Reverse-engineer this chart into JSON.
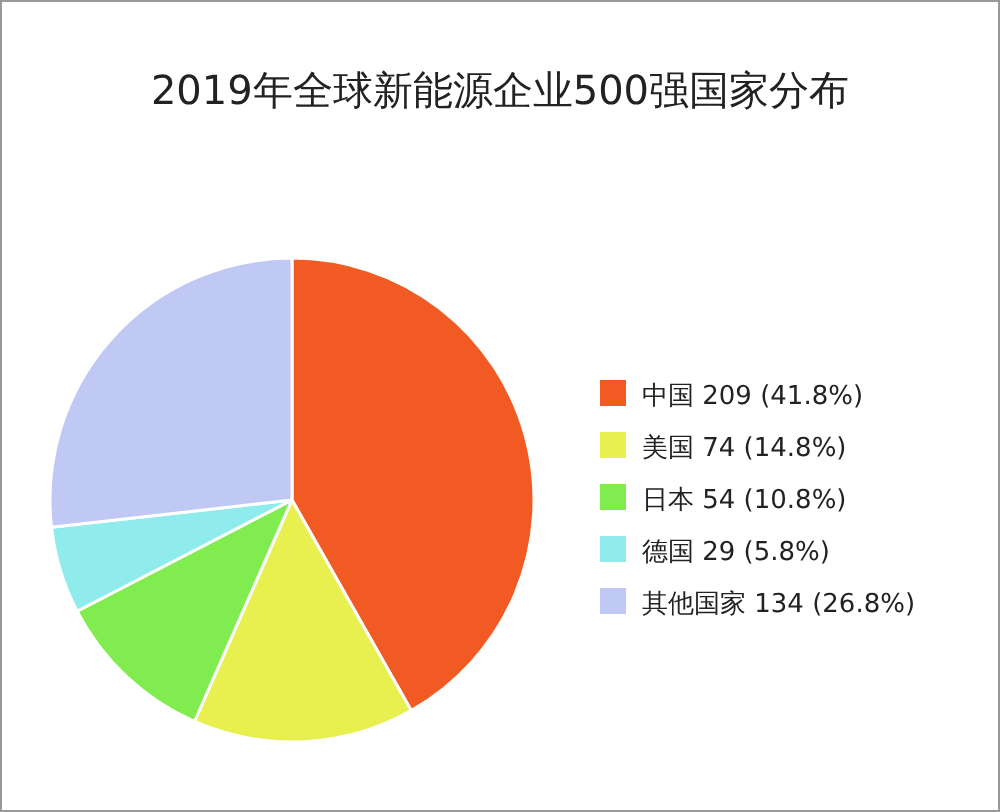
{
  "chart_data": {
    "type": "pie",
    "title": "2019年全球新能源企业500强国家分布",
    "categories": [
      "中国",
      "美国",
      "日本",
      "德国",
      "其他国家"
    ],
    "values": [
      209,
      74,
      54,
      29,
      134
    ],
    "value_labels": [
      "209 (41.8%)",
      "74 (14.8%)",
      "54 (10.8%)",
      "29 (5.8%)",
      "134 (26.8%)"
    ],
    "colors": [
      "#f15a22",
      "#e8f050",
      "#80ec50",
      "#90ecec",
      "#c0c8f4"
    ],
    "legend": "right"
  }
}
